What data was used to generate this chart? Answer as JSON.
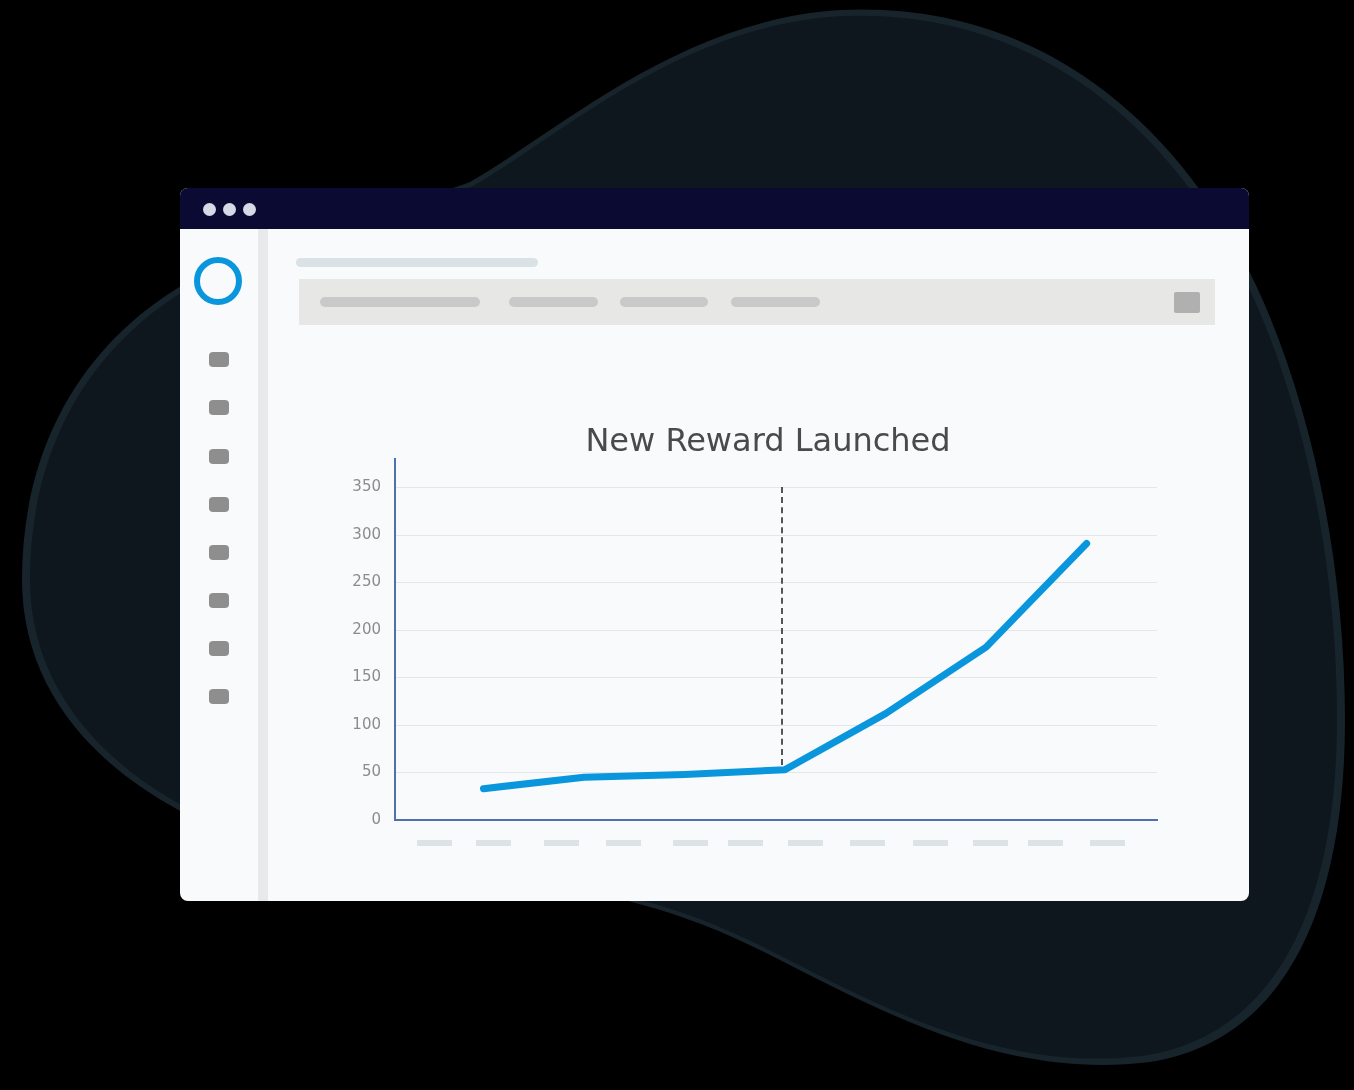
{
  "chart_data": {
    "type": "line",
    "title": "New Reward Launched",
    "categories": [
      null,
      null,
      null,
      null,
      null,
      null,
      null
    ],
    "series": [
      {
        "color": "#0a96dc",
        "values": [
          33,
          45,
          48,
          53,
          112,
          182,
          291
        ]
      }
    ],
    "ylim": [
      0,
      380
    ],
    "yticks": [
      0,
      50,
      100,
      150,
      200,
      250,
      300,
      350
    ],
    "grid": "y",
    "legend": false,
    "marker": "none",
    "line_style": "solid",
    "tick_labels": "y"
  }
}
